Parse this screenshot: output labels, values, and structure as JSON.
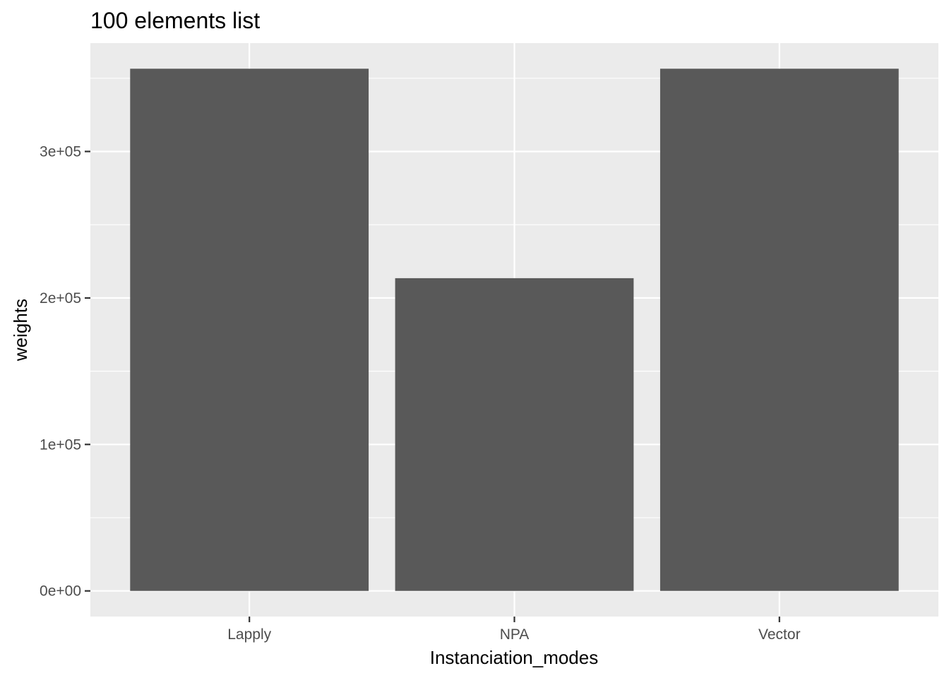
{
  "chart_data": {
    "type": "bar",
    "title": "100  elements  list",
    "xlabel": "Instanciation_modes",
    "ylabel": "weights",
    "categories": [
      "Lapply",
      "NPA",
      "Vector"
    ],
    "values": [
      356500,
      213500,
      356500
    ],
    "ylim": [
      -17500,
      374000
    ],
    "yticks": [
      0,
      100000,
      200000,
      300000
    ],
    "ytick_labels": [
      "0e+00",
      "1e+05",
      "2e+05",
      "3e+05"
    ],
    "grid": true,
    "colors": {
      "bar": "#595959",
      "panel": "#ebebeb",
      "grid": "#ffffff"
    }
  }
}
